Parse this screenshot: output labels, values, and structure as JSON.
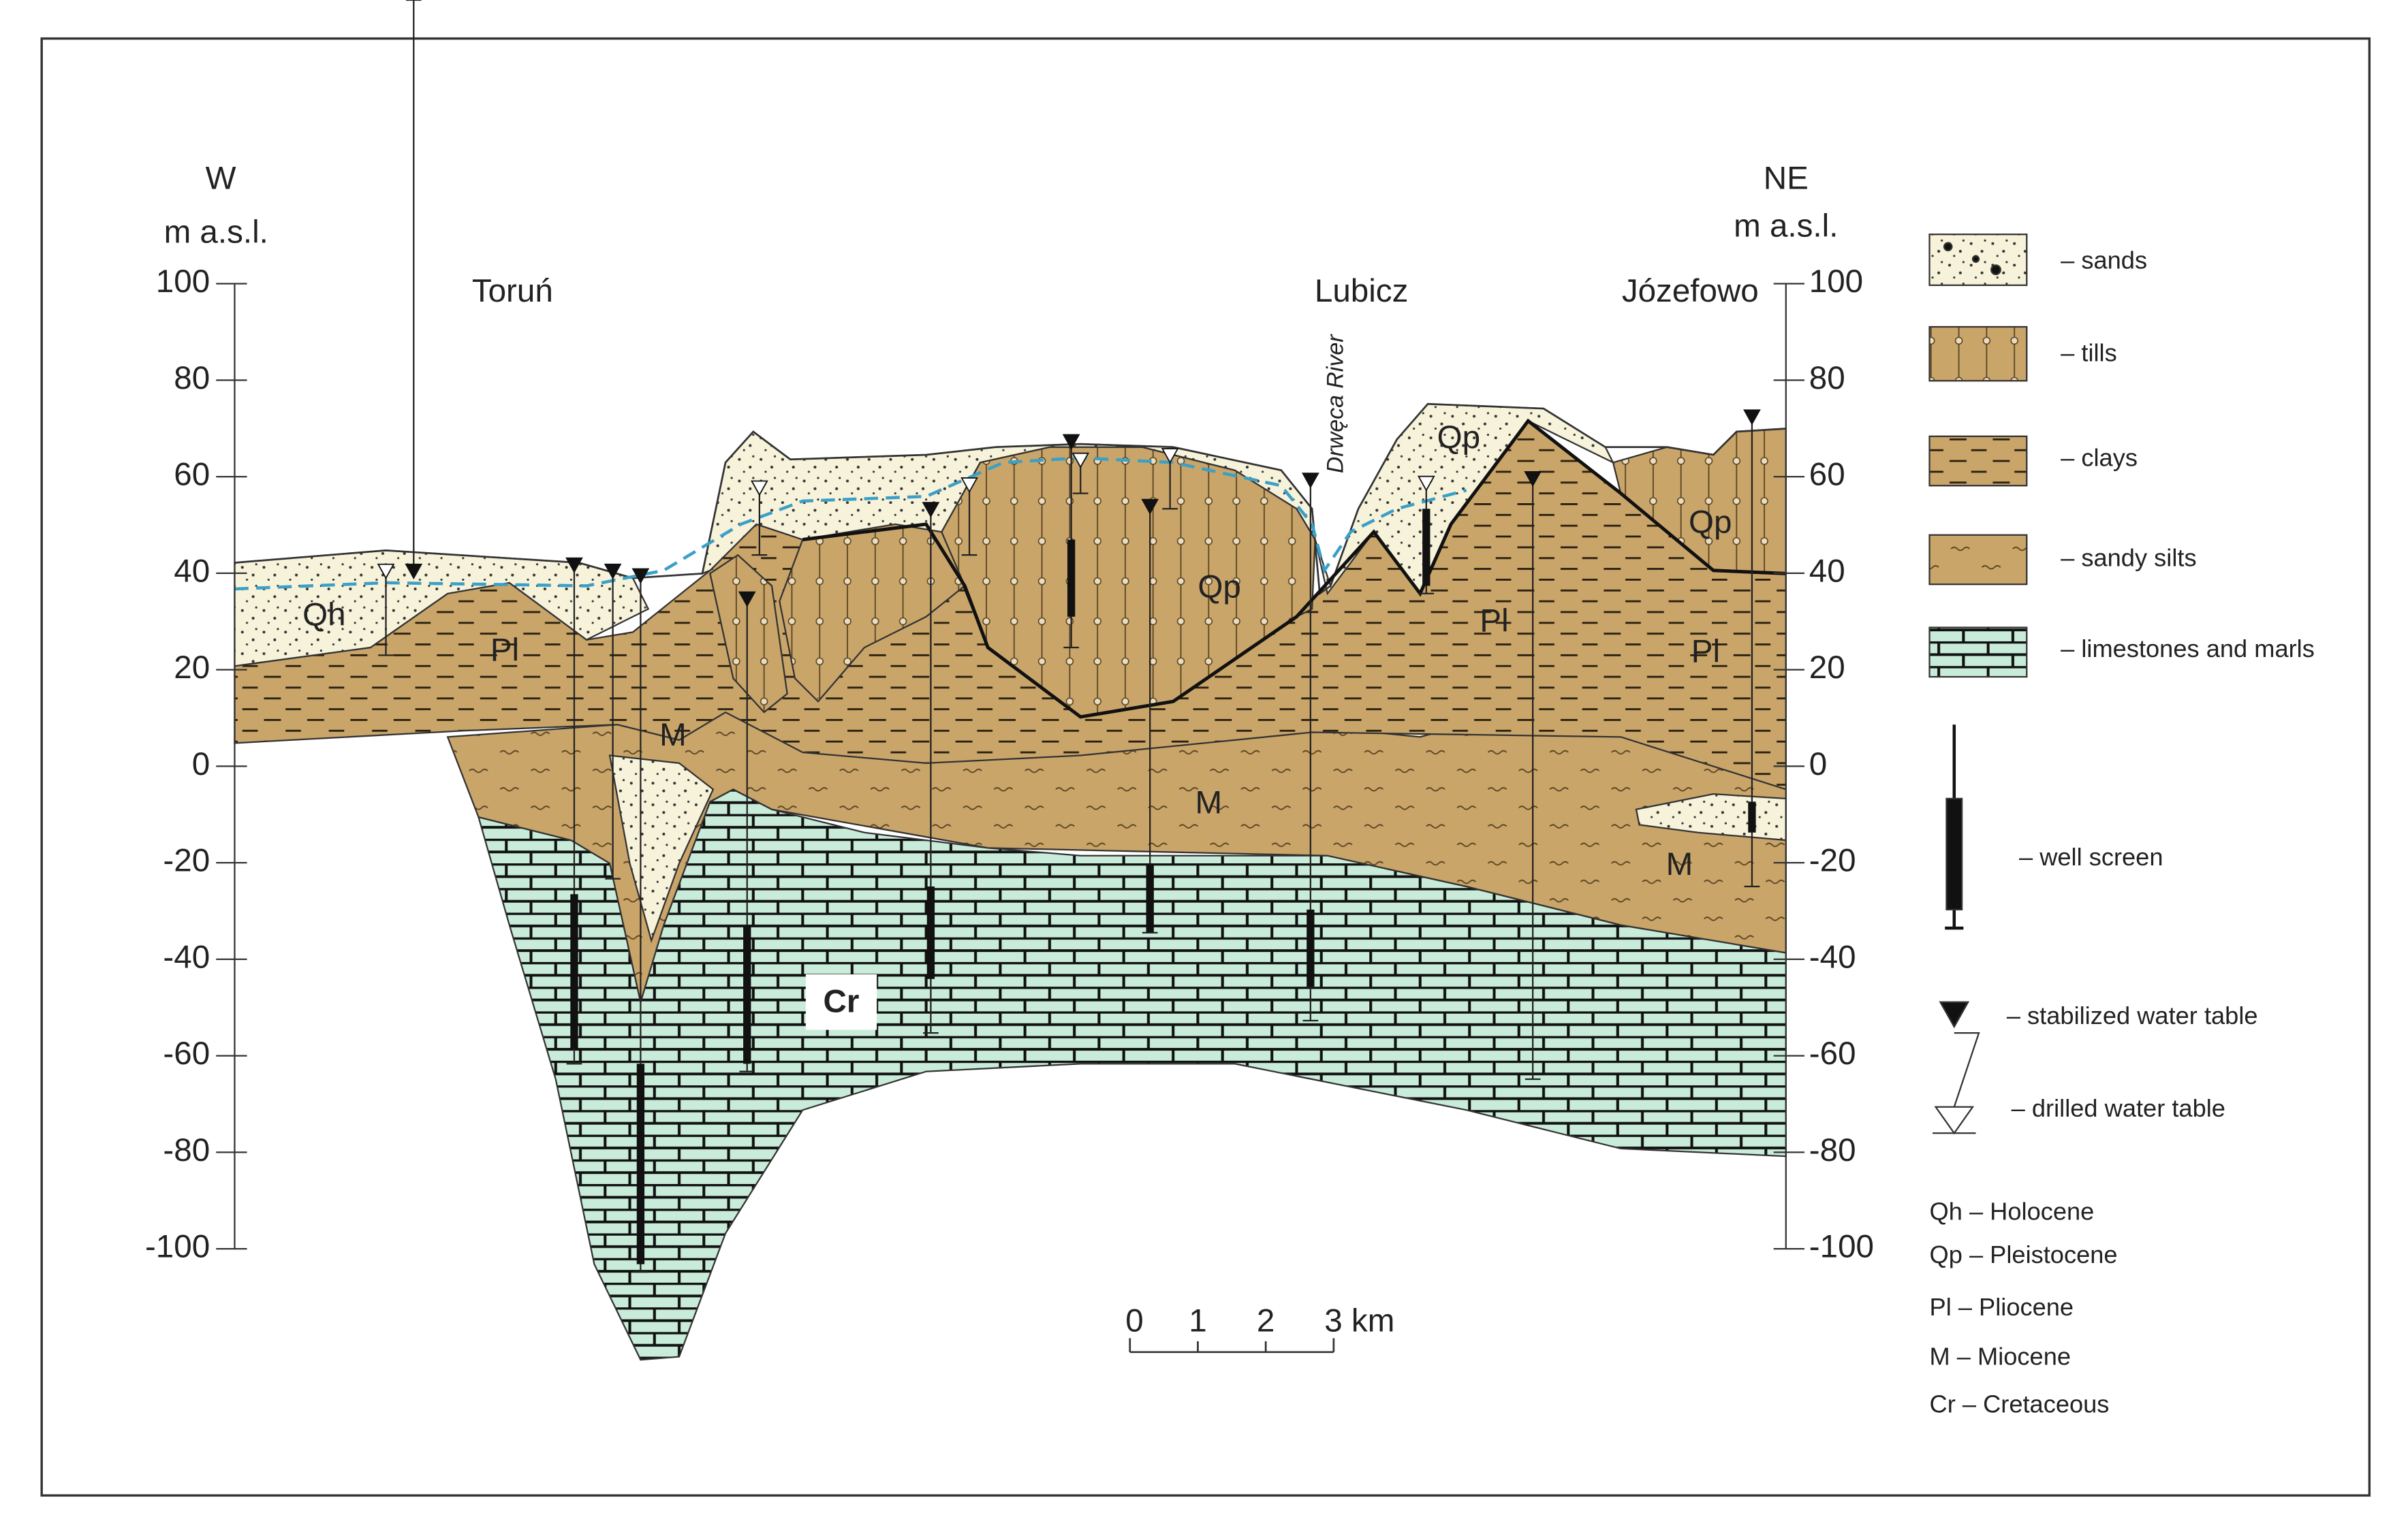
{
  "axes": {
    "left": {
      "direction": "W",
      "unit": "m a.s.l.",
      "ticks": [
        100,
        80,
        60,
        40,
        20,
        0,
        -20,
        -40,
        -60,
        -80,
        -100
      ]
    },
    "right": {
      "direction": "NE",
      "unit": "m a.s.l.",
      "ticks": [
        100,
        80,
        60,
        40,
        20,
        0,
        -20,
        -40,
        -60,
        -80,
        -100
      ]
    }
  },
  "places": [
    "Toruń",
    "Lubicz",
    "Józefowo"
  ],
  "river": "Drwęca River",
  "section_labels": [
    "Qh",
    "Pl",
    "M",
    "Qp",
    "Qp",
    "Qp",
    "Pl",
    "Pl",
    "M",
    "M",
    "Cr"
  ],
  "scale_bar": [
    "0",
    "1",
    "2",
    "3 km"
  ],
  "legend": {
    "lithology": [
      "– sands",
      "– tills",
      "– clays",
      "– sandy silts",
      "– limestones and marls"
    ],
    "symbols": [
      "– well screen",
      "– stabilized water table",
      "– drilled water table"
    ],
    "stratigraphy": [
      "Qh – Holocene",
      "Qp – Pleistocene",
      "Pl – Pliocene",
      "M – Miocene",
      "Cr – Cretaceous"
    ]
  }
}
